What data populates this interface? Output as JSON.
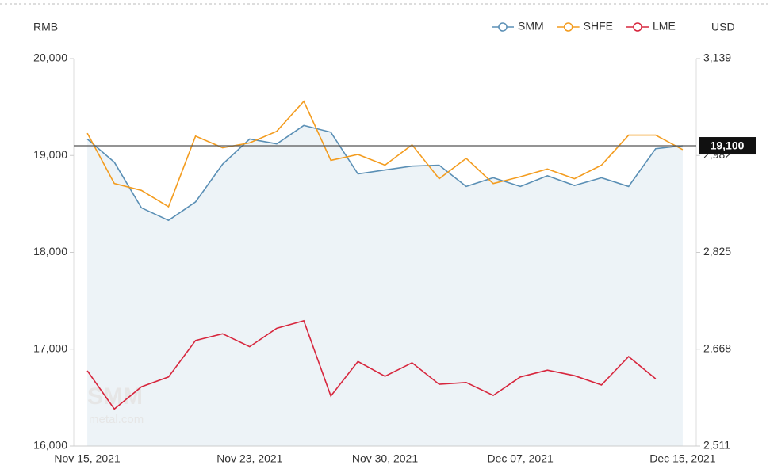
{
  "chart_data": {
    "type": "line",
    "y_label": "RMB",
    "y2_label": "USD",
    "watermark": [
      "SMM",
      "metal.com"
    ],
    "categories": [
      "Nov 15, 2021",
      null,
      null,
      null,
      null,
      null,
      "Nov 23, 2021",
      null,
      null,
      null,
      null,
      "Nov 30, 2021",
      null,
      null,
      null,
      null,
      "Dec 07, 2021",
      null,
      null,
      null,
      null,
      null,
      "Dec 15, 2021"
    ],
    "series": [
      {
        "name": "SMM",
        "color": "#5a8fb5",
        "area": true,
        "values": [
          19170,
          18930,
          18460,
          18330,
          18520,
          18910,
          19170,
          19120,
          19310,
          19240,
          18810,
          18850,
          18890,
          18900,
          18680,
          18770,
          18680,
          18790,
          18690,
          18770,
          18680,
          19070,
          19100
        ]
      },
      {
        "name": "SHFE",
        "color": "#f39c1f",
        "values": [
          19230,
          18710,
          18640,
          18470,
          19200,
          19080,
          19130,
          19250,
          19560,
          18950,
          19010,
          18900,
          19110,
          18760,
          18970,
          18710,
          18780,
          18860,
          18760,
          18900,
          19210,
          19210,
          19060
        ]
      },
      {
        "name": "LME",
        "color": "#d7263d",
        "axis": "y2",
        "values": [
          2633,
          2571,
          2607,
          2623,
          2682,
          2693,
          2672,
          2702,
          2714,
          2592,
          2648,
          2624,
          2646,
          2611,
          2614,
          2593,
          2623,
          2634,
          2625,
          2610,
          2656,
          2620,
          null
        ]
      }
    ],
    "ylim": [
      16000,
      20000
    ],
    "yticks": [
      {
        "value": 16000,
        "label": "16,000"
      },
      {
        "value": 17000,
        "label": "17,000"
      },
      {
        "value": 18000,
        "label": "18,000"
      },
      {
        "value": 19000,
        "label": "19,000"
      },
      {
        "value": 20000,
        "label": "20,000"
      }
    ],
    "y2lim": [
      2511,
      3139
    ],
    "y2ticks": [
      {
        "value": 2511,
        "label": "2,511"
      },
      {
        "value": 2668,
        "label": "2,668"
      },
      {
        "value": 2825,
        "label": "2,825"
      },
      {
        "value": 2982,
        "label": "2,982"
      },
      {
        "value": 3139,
        "label": "3,139"
      }
    ],
    "reference_line": {
      "value": 19100,
      "label": "19,100"
    },
    "legend": "top-right"
  }
}
